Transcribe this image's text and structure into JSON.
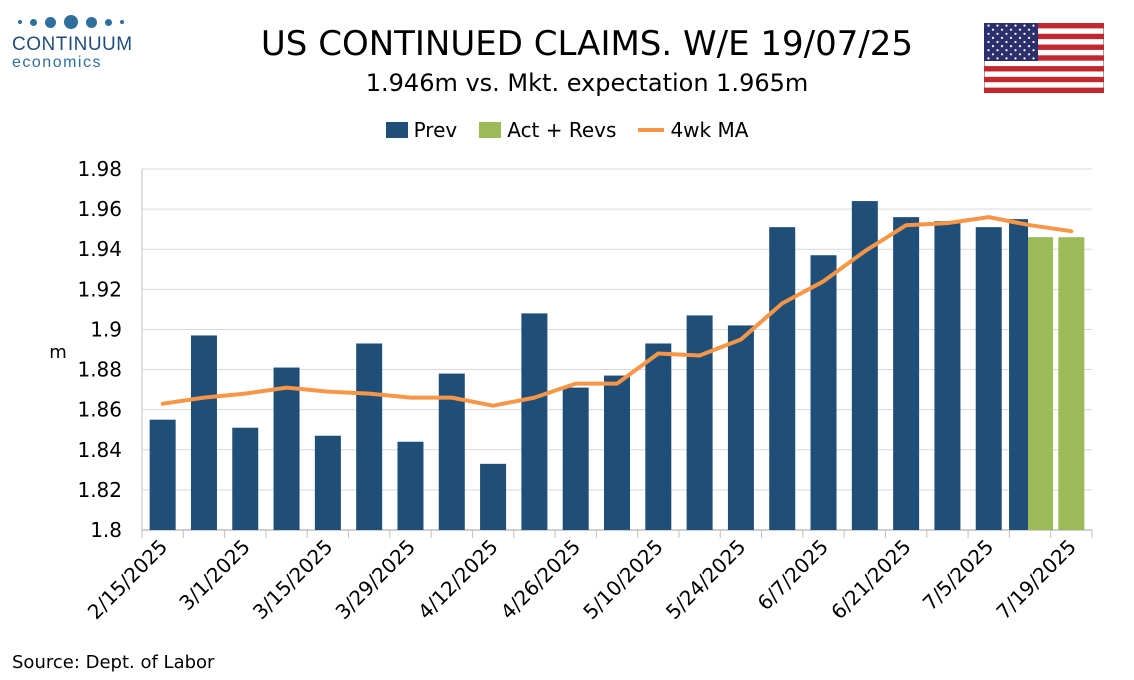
{
  "header": {
    "logo_name": "CONTINUUM",
    "logo_sub": "economics",
    "title": "US CONTINUED CLAIMS. W/E 19/07/25",
    "subtitle": "1.946m vs. Mkt. expectation 1.965m",
    "flag": "us-flag"
  },
  "legend": {
    "prev": "Prev",
    "act": "Act + Revs",
    "ma": "4wk MA"
  },
  "colors": {
    "prev": "#1f4e79",
    "act": "#9bbb59",
    "ma": "#f79646",
    "grid": "#d9d9d9"
  },
  "source": "Source: Dept. of Labor",
  "chart_data": {
    "type": "bar",
    "ylabel": "m",
    "ylim": [
      1.8,
      1.98
    ],
    "yticks": [
      "1.8",
      "1.82",
      "1.84",
      "1.86",
      "1.88",
      "1.9",
      "1.92",
      "1.94",
      "1.96",
      "1.98"
    ],
    "xtick_labels": [
      "2/15/2025",
      "3/1/2025",
      "3/15/2025",
      "3/29/2025",
      "4/12/2025",
      "4/26/2025",
      "5/10/2025",
      "5/24/2025",
      "6/7/2025",
      "6/21/2025",
      "7/5/2025",
      "7/19/2025"
    ],
    "weeks": [
      "2/15/2025",
      "2/22/2025",
      "3/1/2025",
      "3/8/2025",
      "3/15/2025",
      "3/22/2025",
      "3/29/2025",
      "4/5/2025",
      "4/12/2025",
      "4/19/2025",
      "4/26/2025",
      "5/3/2025",
      "5/10/2025",
      "5/17/2025",
      "5/24/2025",
      "5/31/2025",
      "6/7/2025",
      "6/14/2025",
      "6/21/2025",
      "6/28/2025",
      "7/5/2025",
      "7/12/2025",
      "7/19/2025"
    ],
    "series": [
      {
        "name": "Prev",
        "values": [
          1.855,
          1.897,
          1.851,
          1.881,
          1.847,
          1.893,
          1.844,
          1.878,
          1.833,
          1.908,
          1.871,
          1.877,
          1.893,
          1.907,
          1.902,
          1.951,
          1.937,
          1.964,
          1.956,
          1.954,
          1.951,
          1.955,
          null
        ]
      },
      {
        "name": "Act + Revs",
        "values": [
          null,
          null,
          null,
          null,
          null,
          null,
          null,
          null,
          null,
          null,
          null,
          null,
          null,
          null,
          null,
          null,
          null,
          null,
          null,
          null,
          null,
          1.946,
          1.946
        ]
      },
      {
        "name": "4wk MA",
        "values": [
          1.863,
          1.866,
          1.868,
          1.871,
          1.869,
          1.868,
          1.866,
          1.866,
          1.862,
          1.866,
          1.873,
          1.873,
          1.888,
          1.887,
          1.895,
          1.913,
          1.924,
          1.939,
          1.952,
          1.953,
          1.956,
          1.952,
          1.949
        ]
      }
    ]
  }
}
